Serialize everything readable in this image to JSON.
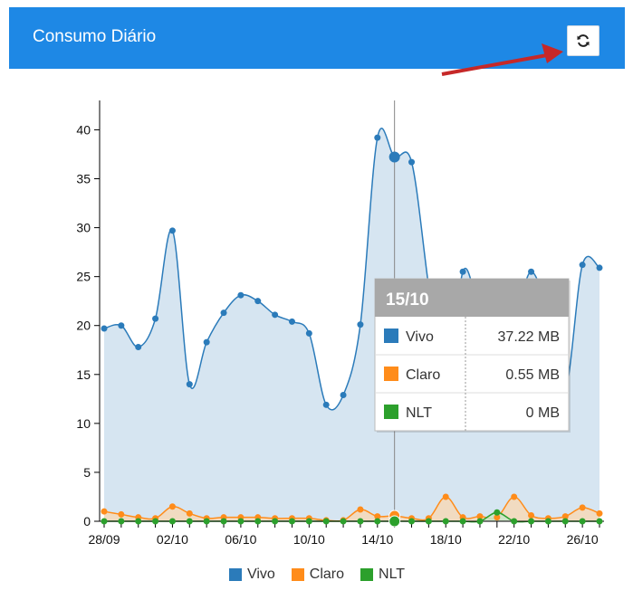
{
  "header": {
    "title": "Consumo Diário",
    "refresh_icon": "refresh-icon",
    "background": "#1e88e5"
  },
  "annotation": {
    "arrow_color": "#c62828"
  },
  "chart_data": {
    "type": "area",
    "x": [
      "28/09",
      "29/09",
      "30/09",
      "01/10",
      "02/10",
      "03/10",
      "04/10",
      "05/10",
      "06/10",
      "07/10",
      "08/10",
      "09/10",
      "10/10",
      "11/10",
      "12/10",
      "13/10",
      "14/10",
      "15/10",
      "16/10",
      "17/10",
      "18/10",
      "19/10",
      "20/10",
      "21/10",
      "22/10",
      "23/10",
      "24/10",
      "25/10",
      "26/10",
      "27/10"
    ],
    "xticks": [
      "28/09",
      "02/10",
      "06/10",
      "10/10",
      "14/10",
      "18/10",
      "22/10",
      "26/10"
    ],
    "yticks": [
      0,
      5,
      10,
      15,
      20,
      25,
      30,
      35,
      40
    ],
    "ylim": [
      0,
      43
    ],
    "series": [
      {
        "name": "Vivo",
        "color": "#2b7bba",
        "fill": "#cfe0ee",
        "values": [
          19.7,
          20.0,
          17.8,
          20.7,
          29.7,
          14.0,
          18.3,
          21.3,
          23.1,
          22.5,
          21.1,
          20.4,
          19.2,
          11.9,
          12.9,
          20.1,
          39.2,
          37.22,
          36.7,
          24.0,
          12.0,
          25.5,
          22.0,
          23.8,
          21.0,
          25.5,
          21.0,
          13.5,
          26.2,
          25.9
        ]
      },
      {
        "name": "Claro",
        "color": "#ff8c1a",
        "fill": "#f6d9b8",
        "values": [
          1.0,
          0.7,
          0.4,
          0.3,
          1.5,
          0.8,
          0.3,
          0.4,
          0.4,
          0.4,
          0.3,
          0.3,
          0.3,
          0.1,
          0.1,
          1.2,
          0.5,
          0.55,
          0.3,
          0.3,
          2.5,
          0.4,
          0.5,
          0.4,
          2.5,
          0.6,
          0.3,
          0.5,
          1.4,
          0.8
        ]
      },
      {
        "name": "NLT",
        "color": "#2ca02c",
        "fill": "#c8e6c9",
        "values": [
          0,
          0,
          0,
          0,
          0,
          0,
          0,
          0,
          0,
          0,
          0,
          0,
          0,
          0,
          0,
          0,
          0,
          0,
          0,
          0,
          0,
          0,
          0,
          0.9,
          0,
          0,
          0,
          0,
          0,
          0
        ]
      }
    ],
    "crosshair_index": 17,
    "tooltip": {
      "title": "15/10",
      "rows": [
        {
          "name": "Vivo",
          "value": "37.22 MB",
          "color": "#2b7bba"
        },
        {
          "name": "Claro",
          "value": "0.55 MB",
          "color": "#ff8c1a"
        },
        {
          "name": "NLT",
          "value": "0 MB",
          "color": "#2ca02c"
        }
      ]
    },
    "legend": [
      "Vivo",
      "Claro",
      "NLT"
    ],
    "legend_position": "bottom-center",
    "grid": false
  }
}
